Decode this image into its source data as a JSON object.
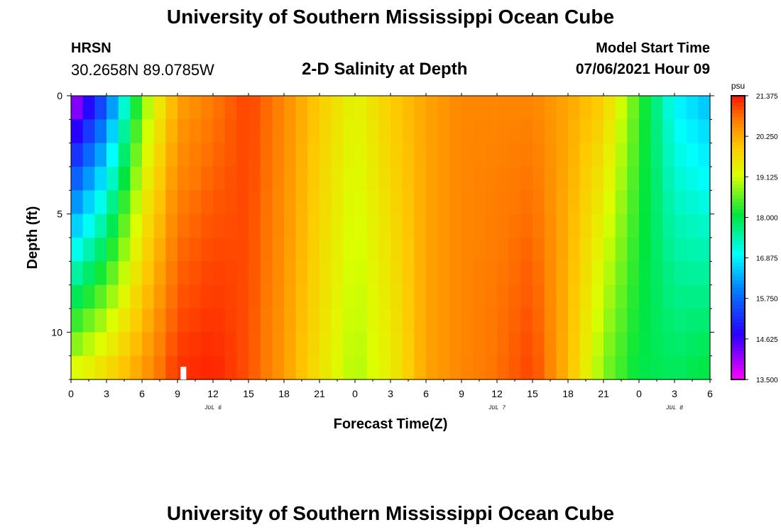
{
  "header": {
    "title": "University of Southern Mississippi Ocean Cube",
    "station": "HRSN",
    "coords": "30.2658N  89.0785W",
    "plot_title": "2-D Salinity at Depth",
    "model_start_label": "Model Start Time",
    "model_start_value": "07/06/2021 Hour 09"
  },
  "footer": {
    "title": "University of Southern Mississippi Ocean Cube"
  },
  "chart_data": {
    "type": "heatmap",
    "title": "2-D Salinity at Depth",
    "xlabel": "Forecast Time(Z)",
    "ylabel": "Depth (ft)",
    "x_hours_range": [
      0,
      54
    ],
    "y_depth_range": [
      0,
      12
    ],
    "x_tick_labels": [
      "0",
      "3",
      "6",
      "9",
      "12",
      "15",
      "18",
      "21",
      "0",
      "3",
      "6",
      "9",
      "12",
      "15",
      "18",
      "21",
      "0",
      "3",
      "6"
    ],
    "y_tick_labels": [
      "0",
      "5",
      "10"
    ],
    "y_tick_values": [
      0,
      5,
      10
    ],
    "date_labels": [
      {
        "label": "JUL 6",
        "hour": 12
      },
      {
        "label": "JUL 7",
        "hour": 36
      },
      {
        "label": "JUL 8",
        "hour": 51
      }
    ],
    "colorbar": {
      "unit": "psu",
      "min": 13.5,
      "max": 21.375,
      "tick_labels": [
        "21.375",
        "20.250",
        "19.125",
        "18.000",
        "16.875",
        "15.750",
        "14.625",
        "13.500"
      ],
      "tick_values": [
        21.375,
        20.25,
        19.125,
        18.0,
        16.875,
        15.75,
        14.625,
        13.5
      ]
    },
    "current_time_marker_hour": 9.5,
    "hours": [
      0,
      3,
      6,
      9,
      12,
      15,
      18,
      21,
      24,
      27,
      30,
      33,
      36,
      39,
      42,
      45,
      48,
      51,
      54
    ],
    "surface_salinity": [
      13.6,
      15.5,
      18.6,
      20.3,
      20.7,
      21.1,
      20.6,
      19.9,
      19.3,
      19.9,
      20.3,
      20.6,
      20.6,
      20.6,
      20.3,
      19.9,
      18.4,
      16.9,
      16.4
    ],
    "bottom_salinity": [
      19.3,
      19.8,
      20.4,
      21.2,
      21.3,
      21.0,
      20.4,
      19.6,
      18.9,
      19.4,
      20.3,
      20.6,
      20.8,
      21.1,
      20.1,
      18.7,
      18.0,
      17.9,
      18.1
    ],
    "depth_levels_ft": [
      0,
      1,
      2,
      3,
      4,
      5,
      6,
      7,
      8,
      9,
      10,
      11,
      12
    ]
  }
}
